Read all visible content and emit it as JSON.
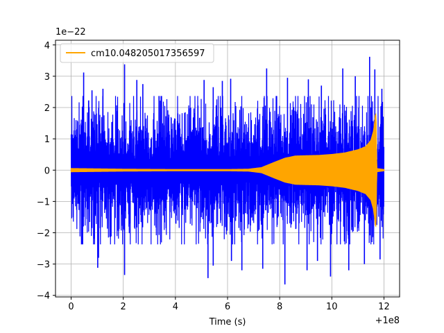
{
  "chart_data": {
    "type": "line",
    "xlabel": "Time (s)",
    "ylabel": "",
    "x_offset_label": "+1e8",
    "y_scale_label": "1e−22",
    "xlim": [
      -0.6,
      12.6
    ],
    "ylim": [
      -4.05,
      4.15
    ],
    "x_ticks": [
      0,
      2,
      4,
      6,
      8,
      10,
      12
    ],
    "x_tick_labels": [
      "0",
      "2",
      "4",
      "6",
      "8",
      "10",
      "12"
    ],
    "y_ticks": [
      -4,
      -3,
      -2,
      -1,
      0,
      1,
      2,
      3,
      4
    ],
    "y_tick_labels": [
      "−4",
      "−3",
      "−2",
      "−1",
      "0",
      "1",
      "2",
      "3",
      "4"
    ],
    "grid": true,
    "legend_position": "top-left",
    "series": [
      {
        "color": "#0000ff",
        "x_range": [
          0,
          12
        ],
        "description_values": {
          "typical_amplitude": 2.0,
          "spike_peaks": [
            [
              0.48,
              3.12
            ],
            [
              0.8,
              2.55
            ],
            [
              1.22,
              2.6
            ],
            [
              2.05,
              3.38
            ],
            [
              2.52,
              2.88
            ],
            [
              2.75,
              2.75
            ],
            [
              5.1,
              2.88
            ],
            [
              5.45,
              2.65
            ],
            [
              5.8,
              2.85
            ],
            [
              6.12,
              2.92
            ],
            [
              7.5,
              3.25
            ],
            [
              8.3,
              2.95
            ],
            [
              9.1,
              2.9
            ],
            [
              9.6,
              2.7
            ],
            [
              10.42,
              3.25
            ],
            [
              10.9,
              3.0
            ],
            [
              11.45,
              3.62
            ],
            [
              11.65,
              3.22
            ],
            [
              11.92,
              2.6
            ],
            [
              1.05,
              -2.8
            ],
            [
              1.02,
              -3.12
            ],
            [
              2.05,
              -3.35
            ],
            [
              5.25,
              -3.45
            ],
            [
              5.45,
              -3.05
            ],
            [
              6.15,
              -2.9
            ],
            [
              6.55,
              -3.2
            ],
            [
              7.35,
              -3.15
            ],
            [
              8.2,
              -3.65
            ],
            [
              9.05,
              -3.2
            ],
            [
              9.45,
              -2.9
            ],
            [
              9.95,
              -3.4
            ],
            [
              10.65,
              -3.2
            ],
            [
              11.25,
              -3.0
            ],
            [
              11.85,
              -2.85
            ]
          ]
        }
      },
      {
        "name": "cm10.048205017356597",
        "color": "#ffa500",
        "x_range": [
          0,
          12
        ],
        "envelope": [
          [
            0,
            0.05
          ],
          [
            2,
            0.03
          ],
          [
            4,
            0.02
          ],
          [
            6,
            0.02
          ],
          [
            6.8,
            0.03
          ],
          [
            7.3,
            0.08
          ],
          [
            7.8,
            0.25
          ],
          [
            8.2,
            0.38
          ],
          [
            8.6,
            0.45
          ],
          [
            9.0,
            0.46
          ],
          [
            9.5,
            0.47
          ],
          [
            10.0,
            0.5
          ],
          [
            10.5,
            0.55
          ],
          [
            11.0,
            0.65
          ],
          [
            11.3,
            0.75
          ],
          [
            11.5,
            0.95
          ],
          [
            11.6,
            1.25
          ],
          [
            11.65,
            1.55
          ],
          [
            11.68,
            1.85
          ],
          [
            11.7,
            1.55
          ],
          [
            11.72,
            0.05
          ],
          [
            12.0,
            0.02
          ]
        ]
      }
    ]
  }
}
